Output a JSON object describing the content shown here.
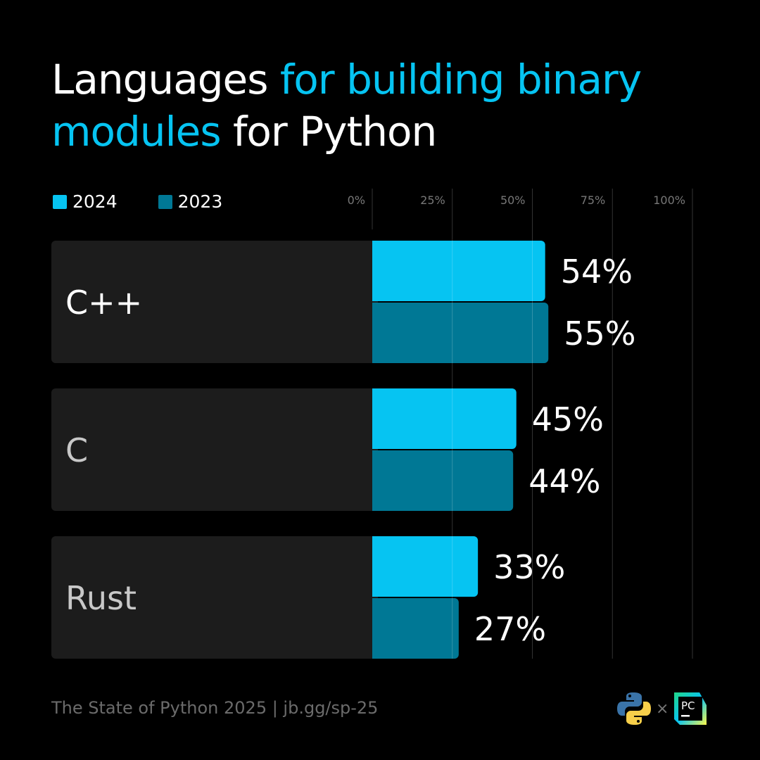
{
  "title": {
    "part1": "Languages ",
    "part2": "for building binary modules",
    "part3": " for Python"
  },
  "footer": "The State of Python 2025 | jb.gg/sp-25",
  "colors": {
    "s2024": "#06c4f2",
    "s2023": "#007895",
    "panel": "#1c1c1c",
    "background": "#000000"
  },
  "logos": {
    "python": "python-logo",
    "pycharm": "PC",
    "separator": "×"
  },
  "chart_data": {
    "type": "bar",
    "orientation": "horizontal",
    "title": "Languages for building binary modules for Python",
    "categories": [
      "C++",
      "C",
      "Rust"
    ],
    "series": [
      {
        "name": "2024",
        "values": [
          54,
          45,
          33
        ]
      },
      {
        "name": "2023",
        "values": [
          55,
          44,
          27
        ]
      }
    ],
    "xlim": [
      0,
      100
    ],
    "xticks": [
      "0%",
      "25%",
      "50%",
      "75%",
      "100%"
    ],
    "tick_values": [
      0,
      25,
      50,
      75,
      100
    ],
    "value_suffix": "%",
    "grid": true,
    "legend": "top-left"
  }
}
